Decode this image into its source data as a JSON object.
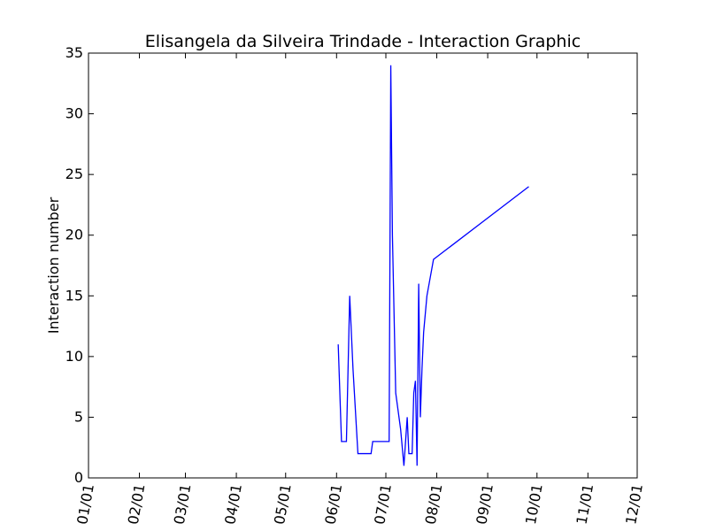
{
  "chart_data": {
    "type": "line",
    "title": "Elisangela da Silveira Trindade - Interaction Graphic",
    "xlabel": "",
    "ylabel": "Interaction number",
    "x_tick_labels": [
      "01/01",
      "02/01",
      "03/01",
      "04/01",
      "05/01",
      "06/01",
      "07/01",
      "08/01",
      "09/01",
      "10/01",
      "11/01",
      "12/01"
    ],
    "y_tick_labels": [
      "0",
      "5",
      "10",
      "15",
      "20",
      "25",
      "30",
      "35"
    ],
    "ylim": [
      0,
      35
    ],
    "xlim_labels": [
      "01/01",
      "12/01"
    ],
    "grid": false,
    "line_color": "#0000ff",
    "series": [
      {
        "x": [
          "06/02",
          "06/04",
          "06/06",
          "06/07",
          "06/09",
          "06/11",
          "06/14",
          "06/17",
          "06/22",
          "06/23",
          "07/03",
          "07/04",
          "07/05",
          "07/07",
          "07/10",
          "07/12",
          "07/14",
          "07/15",
          "07/17",
          "07/18",
          "07/19",
          "07/20",
          "07/21",
          "07/22",
          "07/23",
          "07/24",
          "07/26",
          "07/30",
          "09/26"
        ],
        "y": [
          11,
          3,
          3,
          3,
          15,
          9,
          2,
          2,
          2,
          3,
          3,
          34,
          20,
          7,
          4,
          1,
          5,
          2,
          2,
          7,
          8,
          1,
          16,
          5,
          9,
          12,
          15,
          18,
          24
        ]
      }
    ]
  }
}
